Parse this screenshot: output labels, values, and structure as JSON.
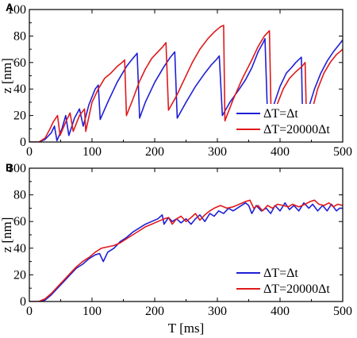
{
  "figure": {
    "panels": [
      {
        "panel_label": "A",
        "ylabel": "z [nm]",
        "xlabel": "",
        "xlim": [
          0,
          500
        ],
        "ylim": [
          0,
          100
        ],
        "xticks": [
          "0",
          "100",
          "200",
          "300",
          "400",
          "500"
        ],
        "yticks": [
          "0",
          "20",
          "40",
          "60",
          "80",
          "100"
        ],
        "legend": {
          "position": "bottom-right",
          "entries": [
            {
              "label": "ΔT=Δt",
              "color": "#1f1fd6"
            },
            {
              "label": "ΔT=20000Δt",
              "color": "#e0191b"
            }
          ]
        }
      },
      {
        "panel_label": "B",
        "ylabel": "z [nm]",
        "xlabel": "T [ms]",
        "xlim": [
          0,
          500
        ],
        "ylim": [
          0,
          100
        ],
        "xticks": [
          "0",
          "100",
          "200",
          "300",
          "400",
          "500"
        ],
        "yticks": [
          "0",
          "20",
          "40",
          "60",
          "80",
          "100"
        ],
        "legend": {
          "position": "bottom-right",
          "entries": [
            {
              "label": "ΔT=Δt",
              "color": "#1f1fd6"
            },
            {
              "label": "ΔT=20000Δt",
              "color": "#e0191b"
            }
          ]
        }
      }
    ]
  },
  "chart_data": [
    {
      "type": "line",
      "panel": "A",
      "xlabel": "",
      "ylabel": "z [nm]",
      "xlim": [
        0,
        500
      ],
      "ylim": [
        0,
        100
      ],
      "grid": false,
      "legend_position": "bottom-right",
      "series": [
        {
          "name": "ΔT=Δt",
          "color": "#1f1fd6",
          "points": [
            [
              0,
              0
            ],
            [
              15,
              0
            ],
            [
              25,
              2
            ],
            [
              35,
              7
            ],
            [
              40,
              12
            ],
            [
              44,
              1
            ],
            [
              52,
              10
            ],
            [
              58,
              20
            ],
            [
              63,
              5
            ],
            [
              72,
              18
            ],
            [
              80,
              25
            ],
            [
              86,
              12
            ],
            [
              95,
              28
            ],
            [
              105,
              40
            ],
            [
              110,
              43
            ],
            [
              113,
              17
            ],
            [
              125,
              30
            ],
            [
              140,
              45
            ],
            [
              155,
              57
            ],
            [
              165,
              63
            ],
            [
              172,
              67
            ],
            [
              176,
              18
            ],
            [
              185,
              30
            ],
            [
              200,
              45
            ],
            [
              215,
              57
            ],
            [
              225,
              64
            ],
            [
              232,
              68
            ],
            [
              236,
              18
            ],
            [
              250,
              30
            ],
            [
              265,
              42
            ],
            [
              280,
              52
            ],
            [
              290,
              58
            ],
            [
              298,
              62
            ],
            [
              303,
              65
            ],
            [
              308,
              20
            ],
            [
              320,
              30
            ],
            [
              335,
              40
            ],
            [
              345,
              47
            ],
            [
              355,
              56
            ],
            [
              365,
              68
            ],
            [
              373,
              75
            ],
            [
              376,
              78
            ],
            [
              380,
              20
            ],
            [
              390,
              28
            ],
            [
              400,
              42
            ],
            [
              410,
              52
            ],
            [
              418,
              56
            ],
            [
              425,
              60
            ],
            [
              434,
              64
            ],
            [
              436,
              18
            ],
            [
              445,
              25
            ],
            [
              455,
              40
            ],
            [
              465,
              52
            ],
            [
              475,
              61
            ],
            [
              485,
              68
            ],
            [
              495,
              74
            ],
            [
              500,
              77
            ]
          ]
        },
        {
          "name": "ΔT=20000Δt",
          "color": "#e0191b",
          "points": [
            [
              0,
              0
            ],
            [
              15,
              0
            ],
            [
              25,
              3
            ],
            [
              33,
              10
            ],
            [
              38,
              15
            ],
            [
              45,
              20
            ],
            [
              49,
              5
            ],
            [
              58,
              15
            ],
            [
              65,
              22
            ],
            [
              70,
              8
            ],
            [
              80,
              20
            ],
            [
              88,
              25
            ],
            [
              90,
              8
            ],
            [
              100,
              30
            ],
            [
              110,
              40
            ],
            [
              120,
              48
            ],
            [
              130,
              52
            ],
            [
              140,
              57
            ],
            [
              148,
              60
            ],
            [
              152,
              62
            ],
            [
              155,
              20
            ],
            [
              165,
              32
            ],
            [
              175,
              45
            ],
            [
              185,
              55
            ],
            [
              195,
              63
            ],
            [
              205,
              68
            ],
            [
              213,
              72
            ],
            [
              218,
              75
            ],
            [
              222,
              24
            ],
            [
              235,
              35
            ],
            [
              248,
              48
            ],
            [
              260,
              60
            ],
            [
              272,
              70
            ],
            [
              285,
              78
            ],
            [
              295,
              83
            ],
            [
              305,
              87
            ],
            [
              310,
              88
            ],
            [
              312,
              16
            ],
            [
              325,
              32
            ],
            [
              340,
              48
            ],
            [
              355,
              62
            ],
            [
              365,
              72
            ],
            [
              375,
              80
            ],
            [
              383,
              84
            ],
            [
              386,
              16
            ],
            [
              395,
              28
            ],
            [
              405,
              40
            ],
            [
              415,
              48
            ],
            [
              425,
              53
            ],
            [
              435,
              57
            ],
            [
              440,
              60
            ],
            [
              442,
              20
            ],
            [
              450,
              22
            ],
            [
              460,
              40
            ],
            [
              470,
              52
            ],
            [
              480,
              60
            ],
            [
              490,
              66
            ],
            [
              500,
              70
            ]
          ]
        }
      ]
    },
    {
      "type": "line",
      "panel": "B",
      "xlabel": "T [ms]",
      "ylabel": "z [nm]",
      "xlim": [
        0,
        500
      ],
      "ylim": [
        0,
        100
      ],
      "grid": false,
      "legend_position": "bottom-right",
      "series": [
        {
          "name": "ΔT=Δt",
          "color": "#1f1fd6",
          "points": [
            [
              0,
              0
            ],
            [
              15,
              0
            ],
            [
              25,
              1
            ],
            [
              35,
              5
            ],
            [
              45,
              10
            ],
            [
              55,
              15
            ],
            [
              65,
              20
            ],
            [
              75,
              25
            ],
            [
              85,
              28
            ],
            [
              95,
              32
            ],
            [
              105,
              35
            ],
            [
              112,
              36
            ],
            [
              118,
              30
            ],
            [
              125,
              37
            ],
            [
              135,
              40
            ],
            [
              145,
              45
            ],
            [
              155,
              48
            ],
            [
              165,
              52
            ],
            [
              175,
              55
            ],
            [
              185,
              58
            ],
            [
              195,
              60
            ],
            [
              205,
              62
            ],
            [
              212,
              65
            ],
            [
              215,
              58
            ],
            [
              222,
              63
            ],
            [
              228,
              60
            ],
            [
              235,
              62
            ],
            [
              242,
              59
            ],
            [
              250,
              62
            ],
            [
              258,
              58
            ],
            [
              265,
              62
            ],
            [
              272,
              65
            ],
            [
              280,
              60
            ],
            [
              288,
              66
            ],
            [
              295,
              64
            ],
            [
              302,
              68
            ],
            [
              310,
              66
            ],
            [
              318,
              70
            ],
            [
              325,
              68
            ],
            [
              335,
              71
            ],
            [
              345,
              74
            ],
            [
              350,
              72
            ],
            [
              355,
              66
            ],
            [
              362,
              72
            ],
            [
              370,
              68
            ],
            [
              378,
              70
            ],
            [
              385,
              66
            ],
            [
              392,
              72
            ],
            [
              400,
              68
            ],
            [
              408,
              74
            ],
            [
              415,
              69
            ],
            [
              422,
              72
            ],
            [
              430,
              68
            ],
            [
              438,
              74
            ],
            [
              446,
              70
            ],
            [
              452,
              73
            ],
            [
              460,
              68
            ],
            [
              468,
              72
            ],
            [
              475,
              68
            ],
            [
              482,
              73
            ],
            [
              490,
              68
            ],
            [
              495,
              70
            ],
            [
              500,
              70
            ]
          ]
        },
        {
          "name": "ΔT=20000Δt",
          "color": "#e0191b",
          "points": [
            [
              0,
              0
            ],
            [
              15,
              0
            ],
            [
              25,
              2
            ],
            [
              35,
              6
            ],
            [
              45,
              11
            ],
            [
              55,
              16
            ],
            [
              65,
              21
            ],
            [
              75,
              26
            ],
            [
              85,
              30
            ],
            [
              95,
              33
            ],
            [
              105,
              37
            ],
            [
              115,
              40
            ],
            [
              125,
              41
            ],
            [
              135,
              42
            ],
            [
              145,
              44
            ],
            [
              155,
              47
            ],
            [
              165,
              50
            ],
            [
              175,
              53
            ],
            [
              185,
              56
            ],
            [
              195,
              58
            ],
            [
              205,
              60
            ],
            [
              215,
              62
            ],
            [
              222,
              63
            ],
            [
              228,
              58
            ],
            [
              235,
              62
            ],
            [
              242,
              64
            ],
            [
              250,
              60
            ],
            [
              258,
              63
            ],
            [
              265,
              66
            ],
            [
              272,
              61
            ],
            [
              280,
              65
            ],
            [
              288,
              68
            ],
            [
              295,
              70
            ],
            [
              305,
              72
            ],
            [
              315,
              70
            ],
            [
              325,
              71
            ],
            [
              335,
              73
            ],
            [
              345,
              75
            ],
            [
              352,
              76
            ],
            [
              358,
              70
            ],
            [
              365,
              72
            ],
            [
              372,
              68
            ],
            [
              380,
              72
            ],
            [
              388,
              70
            ],
            [
              396,
              73
            ],
            [
              405,
              72
            ],
            [
              413,
              71
            ],
            [
              420,
              73
            ],
            [
              430,
              71
            ],
            [
              440,
              73
            ],
            [
              448,
              75
            ],
            [
              455,
              76
            ],
            [
              462,
              73
            ],
            [
              470,
              72
            ],
            [
              478,
              74
            ],
            [
              485,
              71
            ],
            [
              492,
              73
            ],
            [
              500,
              72
            ]
          ]
        }
      ]
    }
  ]
}
